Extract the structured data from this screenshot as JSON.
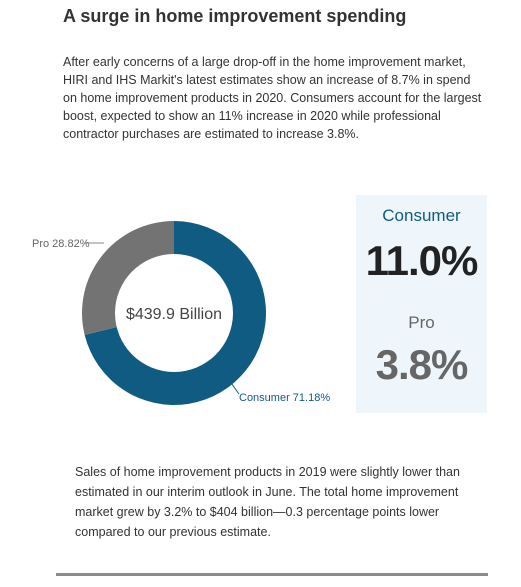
{
  "header": {
    "title": "A surge in home improvement spending"
  },
  "intro_text": "After early concerns of a large drop-off in the home improvement market, HIRI and IHS Markit's latest estimates show an increase of 8.7% in spend on home improvement products in 2020. Consumers account for the largest boost, expected to show an 11% increase in 2020 while professional contractor purchases are estimated to increase 3.8%.",
  "chart_data": {
    "type": "pie",
    "style": "donut",
    "center_label": "$439.9 Billion",
    "slices": [
      {
        "label": "Consumer",
        "value": 71.18,
        "display": "Consumer 71.18%",
        "color": "#0f5b82"
      },
      {
        "label": "Pro",
        "value": 28.82,
        "display": "Pro 28.82%",
        "color": "#737373"
      }
    ]
  },
  "stats": {
    "consumer": {
      "label": "Consumer",
      "value": "11.0%",
      "color": "#0f5b82"
    },
    "pro": {
      "label": "Pro",
      "value": "3.8%",
      "color": "#666666"
    }
  },
  "outro_text": "Sales of home improvement products in 2019 were slightly lower than estimated in our interim outlook in June. The total home improvement market grew by 3.2% to $404 billion—0.3 percentage points lower compared to our previous estimate."
}
